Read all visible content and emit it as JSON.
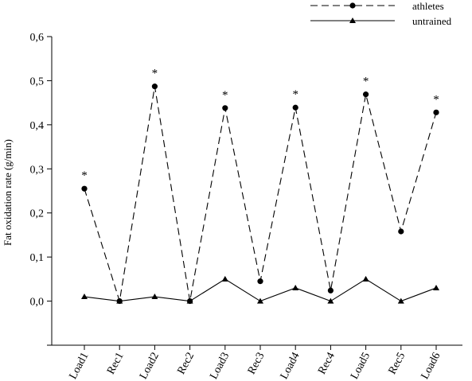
{
  "chart_data": {
    "type": "line",
    "ylabel": "Fat oxidation rate (g/min)",
    "xlabel": "",
    "ylim": [
      -0.1,
      0.6
    ],
    "yticks": [
      "0,0",
      "0,1",
      "0,2",
      "0,3",
      "0,4",
      "0,5",
      "0,6"
    ],
    "categories": [
      "Load1",
      "Rec1",
      "Load2",
      "Rec2",
      "Load3",
      "Rec3",
      "Load4",
      "Rec4",
      "Load5",
      "Rec5",
      "Load6"
    ],
    "series": [
      {
        "name": "athletes",
        "line": "dashed",
        "marker": "circle",
        "values": [
          0.255,
          0.0,
          0.487,
          0.0,
          0.438,
          0.045,
          0.439,
          0.024,
          0.469,
          0.158,
          0.428
        ]
      },
      {
        "name": "untrained",
        "line": "solid",
        "marker": "triangle",
        "values": [
          0.01,
          0.0,
          0.01,
          0.0,
          0.05,
          0.0,
          0.03,
          0.0,
          0.05,
          0.0,
          0.03
        ]
      }
    ],
    "annotations": [
      {
        "category": "Load1",
        "text": "*"
      },
      {
        "category": "Load2",
        "text": "*"
      },
      {
        "category": "Load3",
        "text": "*"
      },
      {
        "category": "Load4",
        "text": "*"
      },
      {
        "category": "Load5",
        "text": "*"
      },
      {
        "category": "Load6",
        "text": "*"
      }
    ],
    "legend": "top-right",
    "grid": false
  }
}
